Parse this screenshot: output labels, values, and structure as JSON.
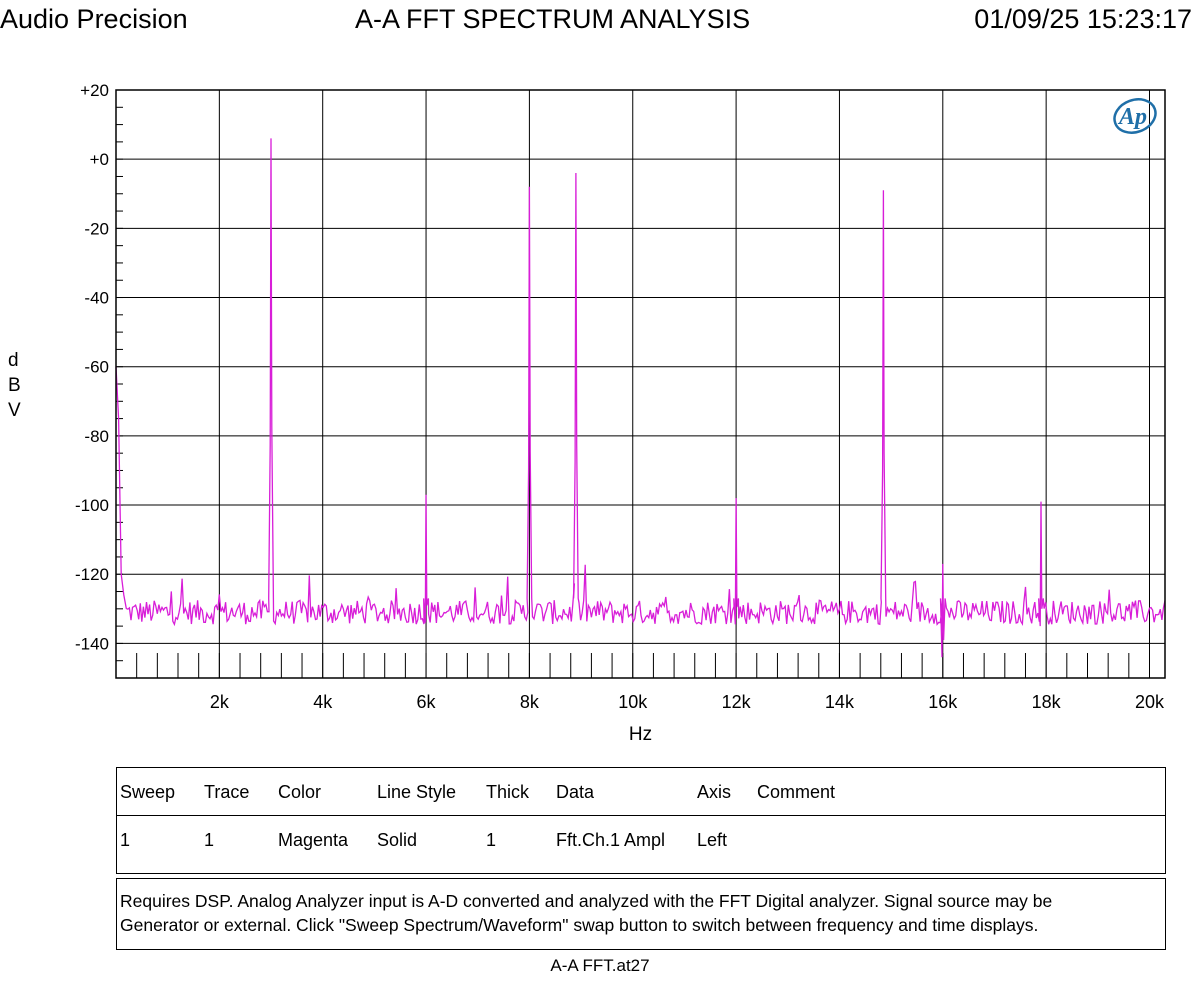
{
  "header": {
    "left": "Audio Precision",
    "center": "A-A FFT SPECTRUM ANALYSIS",
    "right": "01/09/25 15:23:17"
  },
  "logo_text": "Ap",
  "colors": {
    "trace": "#d81ed8",
    "grid": "#000000",
    "logo": "#1f6fa8"
  },
  "chart_data": {
    "type": "line",
    "title": "A-A FFT SPECTRUM ANALYSIS",
    "xlabel": "Hz",
    "ylabel": "dBV",
    "ylabel_chars": [
      "d",
      "B",
      "V"
    ],
    "xlim": [
      0,
      20300
    ],
    "ylim": [
      -150,
      20
    ],
    "x_ticks": [
      2000,
      4000,
      6000,
      8000,
      10000,
      12000,
      14000,
      16000,
      18000,
      20000
    ],
    "x_tick_labels": [
      "2k",
      "4k",
      "6k",
      "8k",
      "10k",
      "12k",
      "14k",
      "16k",
      "18k",
      "20k"
    ],
    "y_ticks": [
      20,
      0,
      -20,
      -40,
      -60,
      -80,
      -100,
      -120,
      -140
    ],
    "y_tick_labels": [
      "+20",
      "+0",
      "-20",
      "-40",
      "-60",
      "-80",
      "-100",
      "-120",
      "-140"
    ],
    "grid": true,
    "noise_floor_dBV": -131,
    "low_end": {
      "x": [
        0,
        50,
        100,
        150
      ],
      "y": [
        -60,
        -75,
        -120,
        -126
      ]
    },
    "peaks": [
      {
        "x": 3000,
        "y": 6
      },
      {
        "x": 6000,
        "y": -97
      },
      {
        "x": 8000,
        "y": -8
      },
      {
        "x": 8900,
        "y": -4
      },
      {
        "x": 12000,
        "y": -98
      },
      {
        "x": 14850,
        "y": -9
      },
      {
        "x": 16000,
        "y": -117
      },
      {
        "x": 17900,
        "y": -99
      }
    ],
    "series": [
      {
        "name": "Sweep 1 Trace 1 Fft.Ch.1 Ampl",
        "color": "Magenta"
      }
    ]
  },
  "legend": {
    "headers": [
      "Sweep",
      "Trace",
      "Color",
      "Line Style",
      "Thick",
      "Data",
      "Axis",
      "Comment"
    ],
    "rows": [
      [
        "1",
        "1",
        "Magenta",
        "Solid",
        "1",
        "Fft.Ch.1 Ampl",
        "Left",
        ""
      ]
    ]
  },
  "notes": [
    "Requires DSP.  Analog Analyzer input is A-D converted and analyzed with the FFT Digital analyzer.  Signal source may be",
    "Generator or external.  Click \"Sweep Spectrum/Waveform\" swap button to switch between frequency and time displays."
  ],
  "footer": "A-A FFT.at27"
}
